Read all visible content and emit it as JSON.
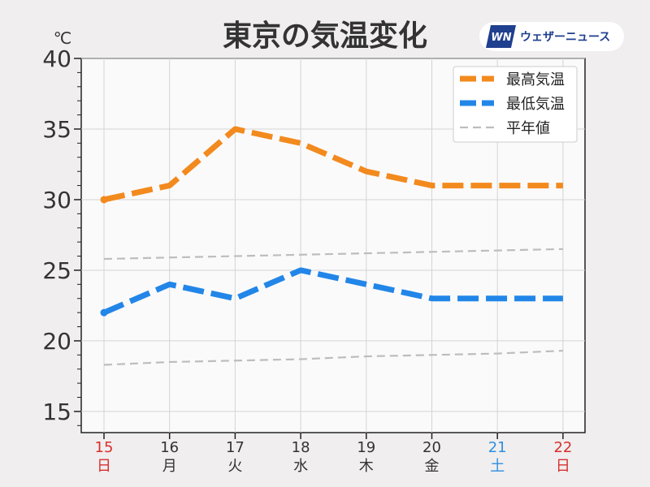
{
  "colors": {
    "page_bg": "#f0eeee",
    "plot_bg": "#fbfafb",
    "grid": "#d4d4d4",
    "high": "#f28a1e",
    "low": "#2286e8",
    "normal": "#bdbdbd",
    "sunday": "#d92e2e",
    "saturday": "#2f8fe0",
    "weekday": "#333333",
    "logo_blue": "#1f3f8f"
  },
  "logo": {
    "mark": "WN",
    "text": "ウェザーニュース",
    "icon": "weathernews-logo"
  },
  "chart_data": {
    "type": "line",
    "title": "東京の気温変化",
    "ylabel": "℃",
    "xlabel": "",
    "ylim": [
      13.5,
      40
    ],
    "yticks": [
      15,
      20,
      25,
      30,
      35,
      40
    ],
    "grid": true,
    "legend_position": "top-right",
    "categories": [
      "15",
      "16",
      "17",
      "18",
      "19",
      "20",
      "21",
      "22"
    ],
    "weekdays": [
      "日",
      "月",
      "火",
      "水",
      "木",
      "金",
      "土",
      "日"
    ],
    "day_types": [
      "sunday",
      "weekday",
      "weekday",
      "weekday",
      "weekday",
      "weekday",
      "saturday",
      "sunday"
    ],
    "series": [
      {
        "name": "最高気温",
        "key": "high",
        "style": "dashed-thick",
        "values": [
          30,
          31,
          35,
          34,
          32,
          31,
          31,
          31
        ]
      },
      {
        "name": "最低気温",
        "key": "low",
        "style": "dashed-thick",
        "values": [
          22,
          24,
          23,
          25,
          24,
          23,
          23,
          23
        ]
      },
      {
        "name": "平年値",
        "key": "normal",
        "style": "dashed-thin",
        "values": [
          25.8,
          25.9,
          26.0,
          26.1,
          26.2,
          26.3,
          26.4,
          26.5
        ]
      },
      {
        "name": "",
        "key": "normal",
        "style": "dashed-thin",
        "values": [
          18.3,
          18.5,
          18.6,
          18.7,
          18.9,
          19.0,
          19.1,
          19.3
        ]
      }
    ]
  }
}
